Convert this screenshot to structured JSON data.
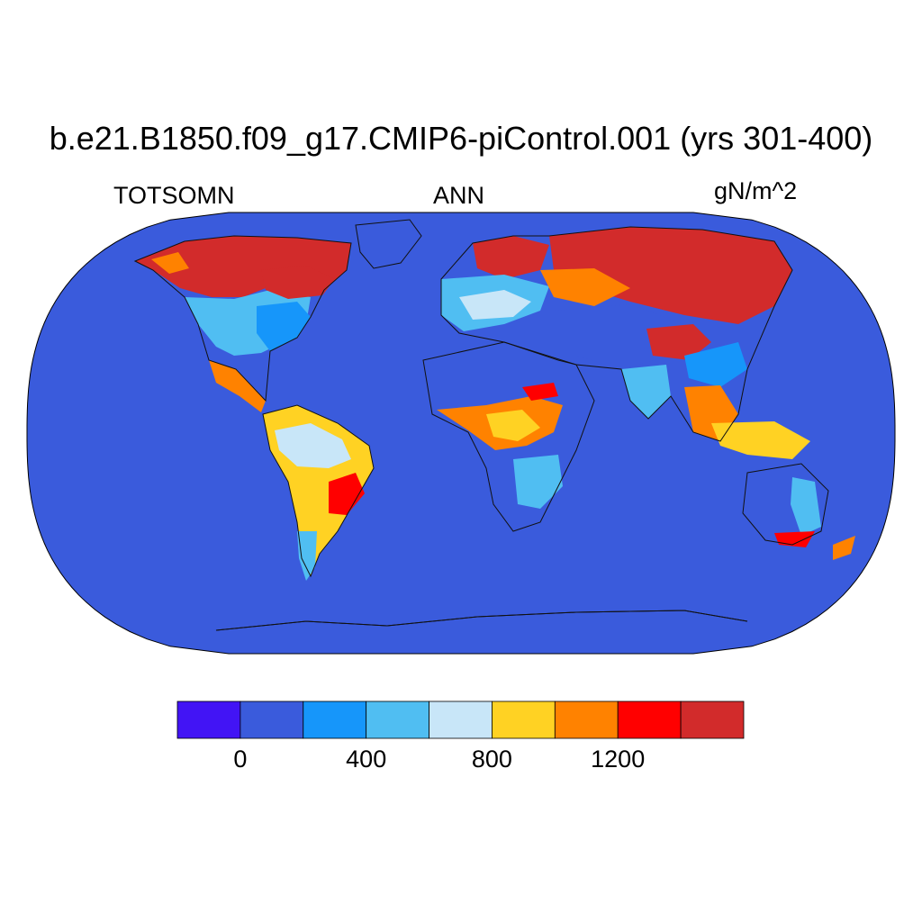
{
  "title": "b.e21.B1850.f09_g17.CMIP6-piControl.001 (yrs 301-400)",
  "subtitle_left": "TOTSOMN",
  "subtitle_center": "ANN",
  "subtitle_right": "gN/m^2",
  "projection": "Robinson",
  "colors": {
    "ocean": "#3a5bdc",
    "land_low": "#3a5bdc",
    "coastline": "#111111"
  },
  "colorbar": {
    "colors": [
      "#4214f5",
      "#3a5bdc",
      "#1696fa",
      "#50bef2",
      "#c8e6f8",
      "#ffd223",
      "#ff8200",
      "#ff0000",
      "#d22b2b"
    ],
    "levels": [
      0,
      200,
      400,
      600,
      800,
      1000,
      1200,
      1400
    ],
    "tick_labels": [
      "0",
      "400",
      "800",
      "1200"
    ]
  }
}
